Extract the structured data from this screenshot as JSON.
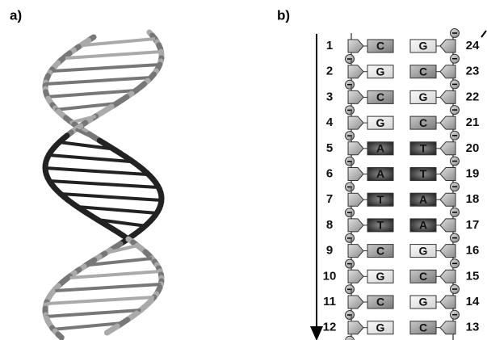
{
  "panels": {
    "a": {
      "label": "a)"
    },
    "b": {
      "label": "b)",
      "left_strand": [
        {
          "number": 1,
          "base": "C"
        },
        {
          "number": 2,
          "base": "G"
        },
        {
          "number": 3,
          "base": "C"
        },
        {
          "number": 4,
          "base": "G"
        },
        {
          "number": 5,
          "base": "A"
        },
        {
          "number": 6,
          "base": "A"
        },
        {
          "number": 7,
          "base": "T"
        },
        {
          "number": 8,
          "base": "T"
        },
        {
          "number": 9,
          "base": "C"
        },
        {
          "number": 10,
          "base": "G"
        },
        {
          "number": 11,
          "base": "C"
        },
        {
          "number": 12,
          "base": "G"
        }
      ],
      "right_strand": [
        {
          "number": 24,
          "base": "G"
        },
        {
          "number": 23,
          "base": "C"
        },
        {
          "number": 22,
          "base": "G"
        },
        {
          "number": 21,
          "base": "C"
        },
        {
          "number": 20,
          "base": "T"
        },
        {
          "number": 19,
          "base": "T"
        },
        {
          "number": 18,
          "base": "A"
        },
        {
          "number": 17,
          "base": "A"
        },
        {
          "number": 16,
          "base": "G"
        },
        {
          "number": 15,
          "base": "C"
        },
        {
          "number": 14,
          "base": "G"
        },
        {
          "number": 13,
          "base": "C"
        }
      ]
    }
  }
}
